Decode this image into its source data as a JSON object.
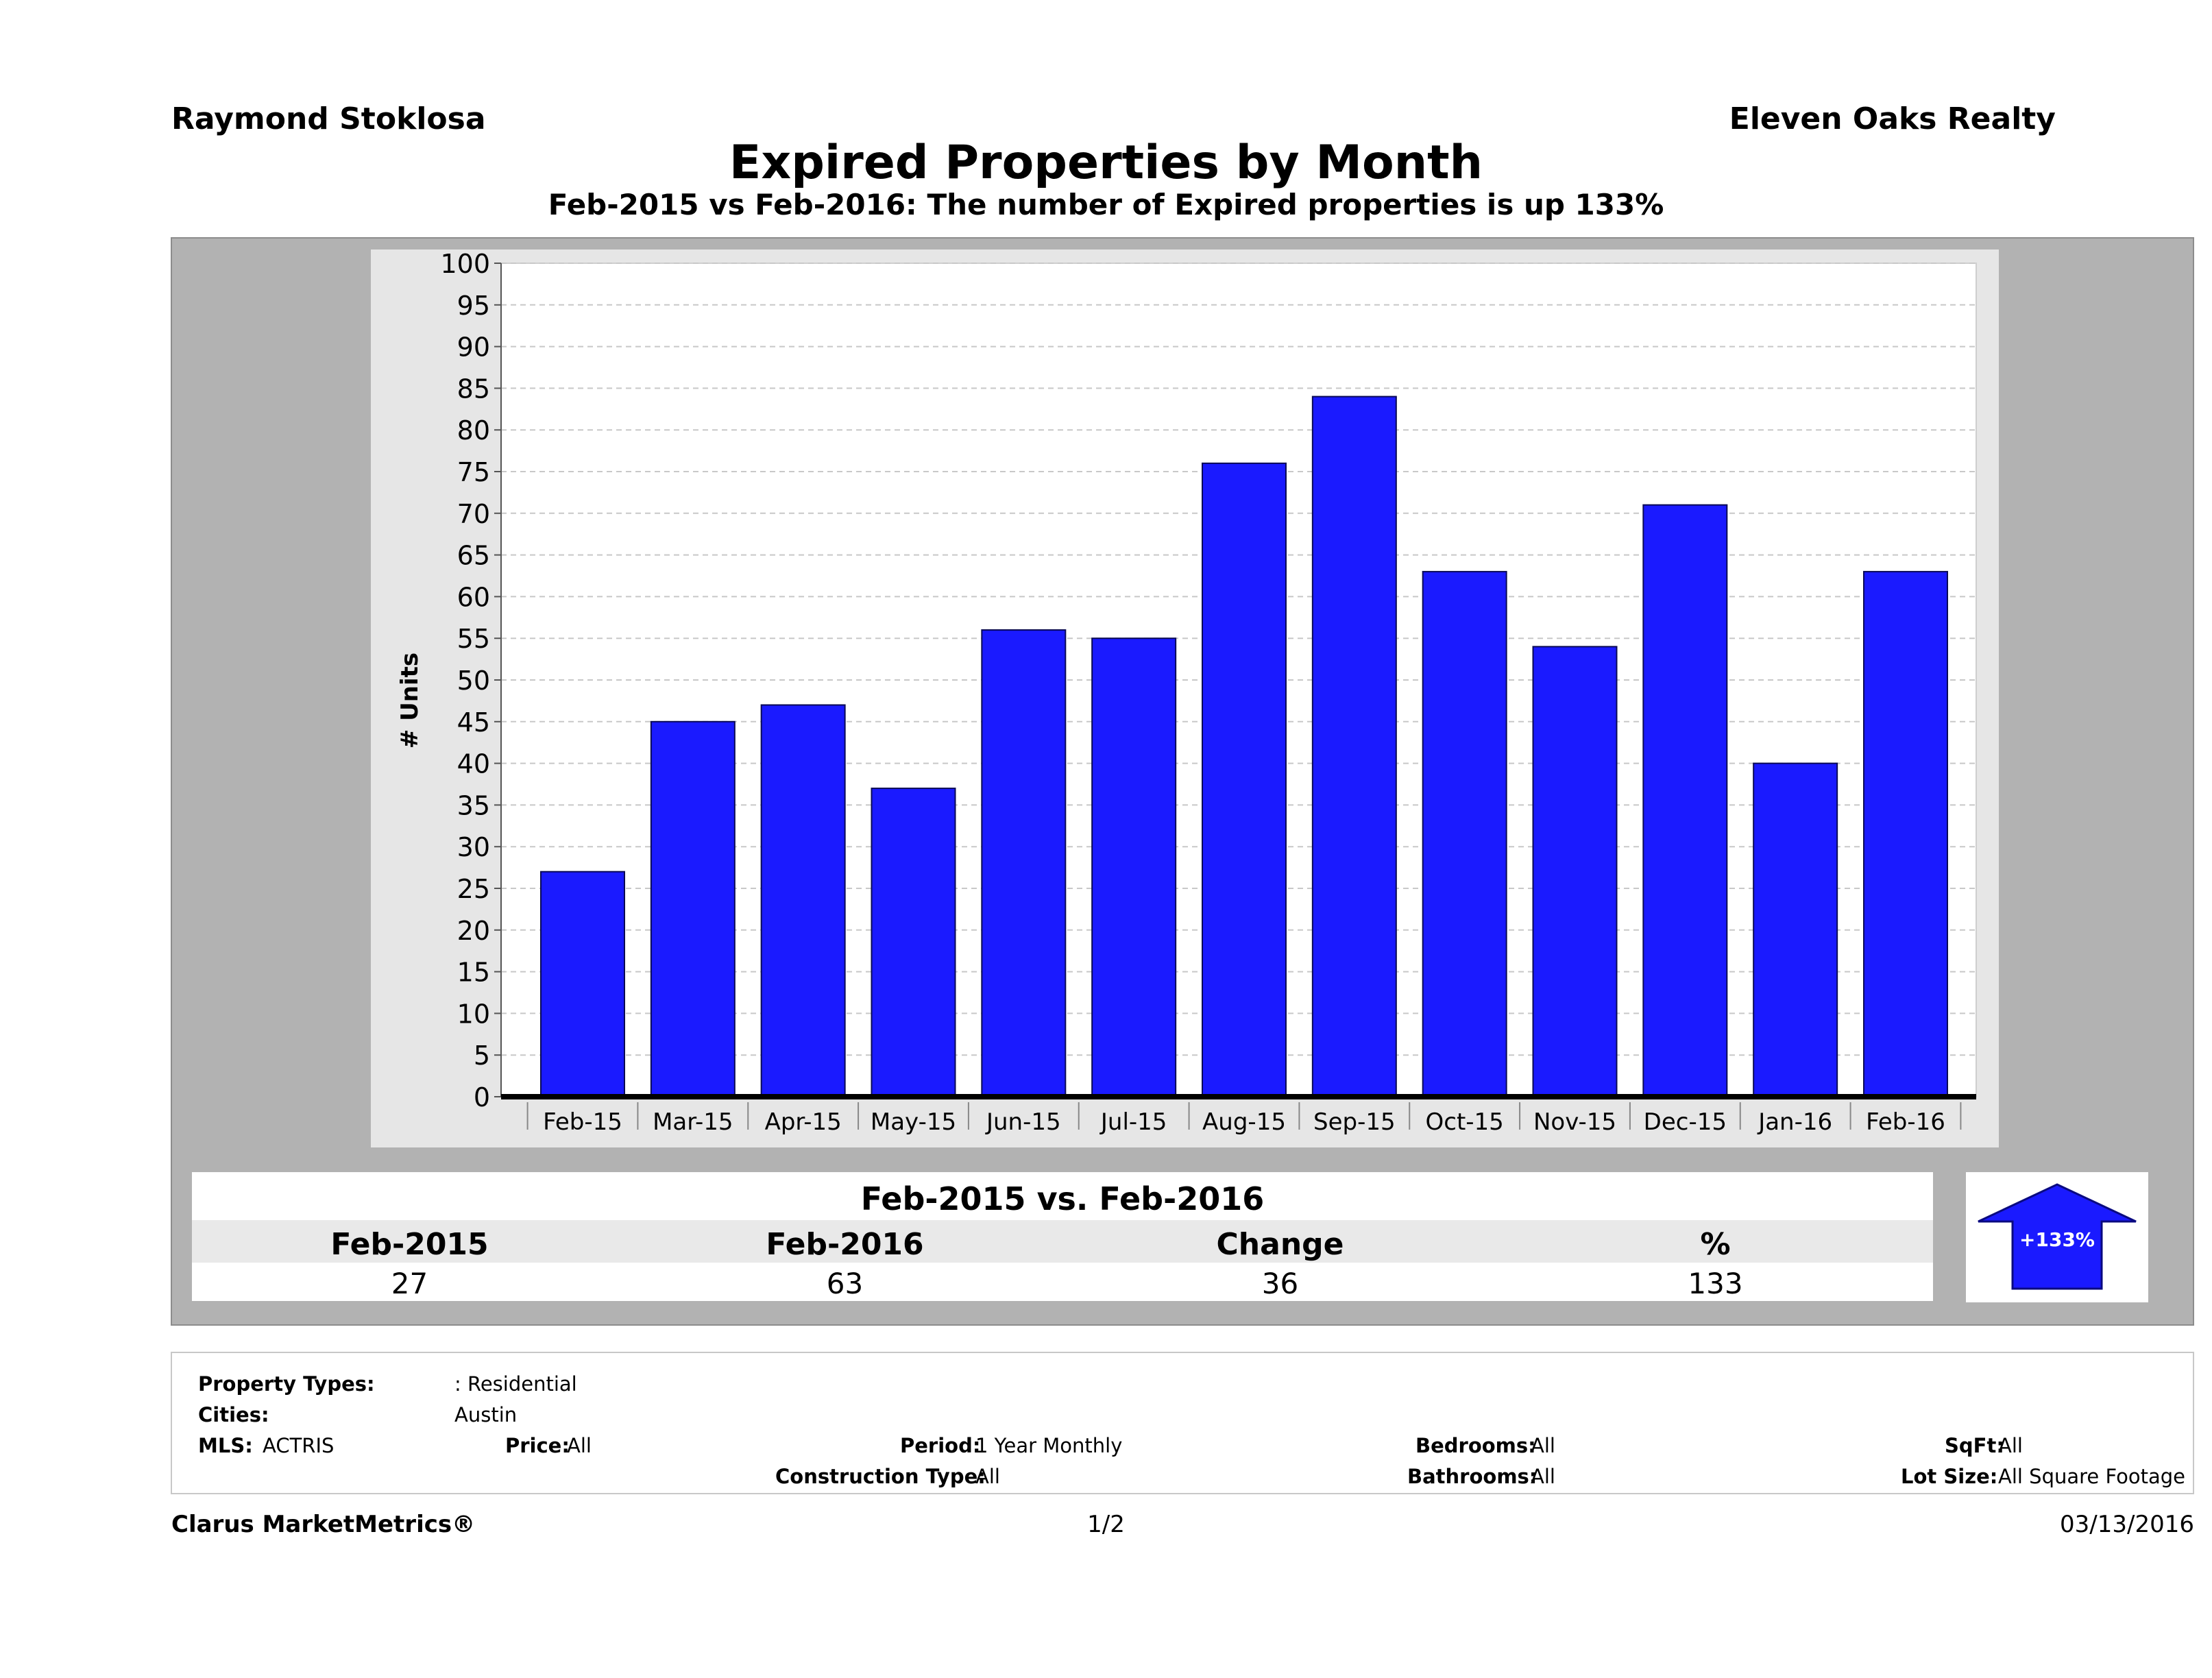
{
  "header": {
    "agent": "Raymond Stoklosa",
    "company": "Eleven Oaks Realty",
    "title": "Expired Properties by Month",
    "subtitle": "Feb-2015 vs Feb-2016: The number of Expired  properties is up 133%"
  },
  "chart_data": {
    "type": "bar",
    "categories": [
      "Feb-15",
      "Mar-15",
      "Apr-15",
      "May-15",
      "Jun-15",
      "Jul-15",
      "Aug-15",
      "Sep-15",
      "Oct-15",
      "Nov-15",
      "Dec-15",
      "Jan-16",
      "Feb-16"
    ],
    "values": [
      27,
      45,
      47,
      37,
      56,
      55,
      76,
      84,
      63,
      54,
      71,
      40,
      63
    ],
    "xlabel": "",
    "ylabel": "# Units",
    "ylim": [
      0,
      100
    ],
    "ytick_step": 5,
    "grid": true,
    "bar_color": "#1a1aff"
  },
  "summary": {
    "heading": "Feb-2015 vs. Feb-2016",
    "labels": [
      "Feb-2015",
      "Feb-2016",
      "Change",
      "%"
    ],
    "values": [
      "27",
      "63",
      "36",
      "133"
    ],
    "badge": "+133%",
    "badge_color": "#1a1aff"
  },
  "criteria": {
    "property_types_label": "Property Types:",
    "property_types_value": ": Residential",
    "cities_label": "Cities:",
    "cities_value": "Austin",
    "mls_label": "MLS:",
    "mls_value": "ACTRIS",
    "price_label": "Price:",
    "price_value": "All",
    "period_label": "Period:",
    "period_value": "1 Year Monthly",
    "construction_label": "Construction Type:",
    "construction_value": "All",
    "bedrooms_label": "Bedrooms:",
    "bedrooms_value": "All",
    "bathrooms_label": "Bathrooms:",
    "bathrooms_value": "All",
    "sqft_label": "SqFt:",
    "sqft_value": "All",
    "lotsize_label": "Lot Size:",
    "lotsize_value": "All Square Footage"
  },
  "footer": {
    "brand": "Clarus MarketMetrics®",
    "page": "1/2",
    "date": "03/13/2016"
  }
}
